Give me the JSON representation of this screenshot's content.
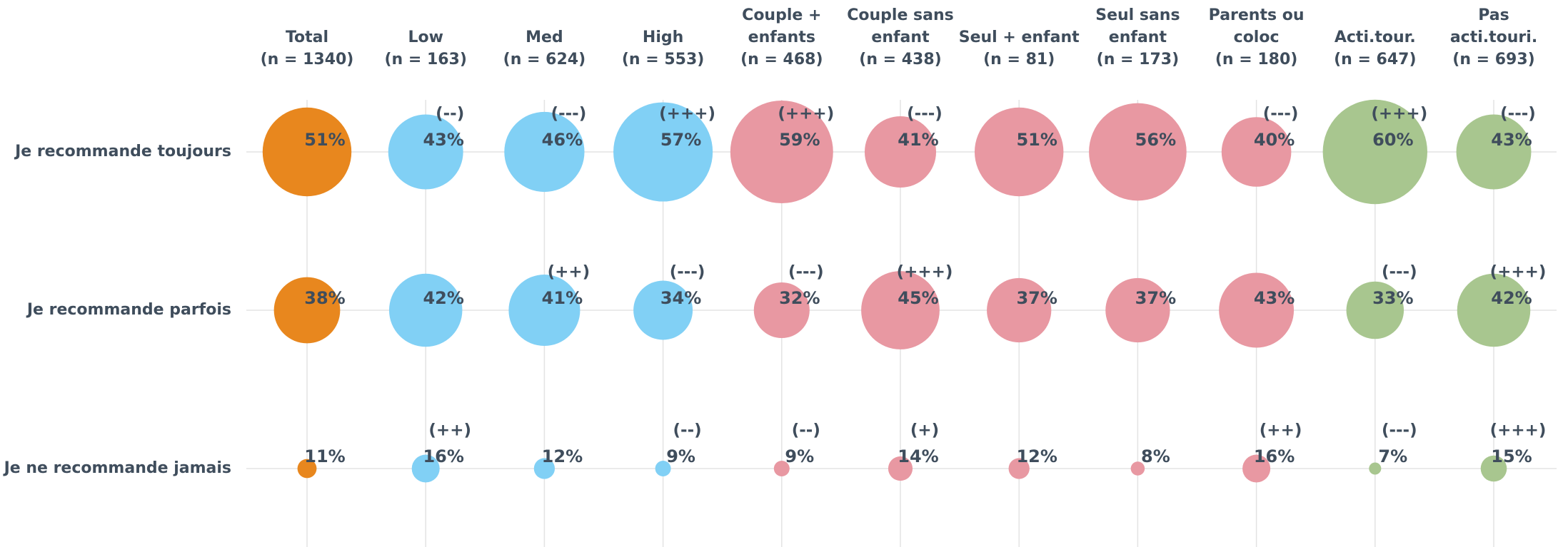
{
  "chart_data": {
    "type": "bubble-grid",
    "columns": [
      {
        "label": [
          "Total",
          "(n = 1340)"
        ],
        "color": "#e8871e"
      },
      {
        "label": [
          "Low",
          "(n = 163)"
        ],
        "color": "#81d0f5"
      },
      {
        "label": [
          "Med",
          "(n = 624)"
        ],
        "color": "#81d0f5"
      },
      {
        "label": [
          "High",
          "(n = 553)"
        ],
        "color": "#81d0f5"
      },
      {
        "label": [
          "Couple +",
          "enfants",
          "(n = 468)"
        ],
        "color": "#e898a2"
      },
      {
        "label": [
          "Couple sans",
          "enfant",
          "(n = 438)"
        ],
        "color": "#e898a2"
      },
      {
        "label": [
          "Seul + enfant",
          "(n = 81)"
        ],
        "color": "#e898a2"
      },
      {
        "label": [
          "Seul sans",
          "enfant",
          "(n = 173)"
        ],
        "color": "#e898a2"
      },
      {
        "label": [
          "Parents ou",
          "coloc",
          "(n = 180)"
        ],
        "color": "#e898a2"
      },
      {
        "label": [
          "Acti.tour.",
          "(n = 647)"
        ],
        "color": "#a8c68f"
      },
      {
        "label": [
          "Pas",
          "acti.touri.",
          "(n = 693)"
        ],
        "color": "#a8c68f"
      }
    ],
    "rows": [
      "Je recommande toujours",
      "Je recommande parfois",
      "Je ne recommande jamais"
    ],
    "values": [
      [
        51,
        43,
        46,
        57,
        59,
        41,
        51,
        56,
        40,
        60,
        43
      ],
      [
        38,
        42,
        41,
        34,
        32,
        45,
        37,
        37,
        43,
        33,
        42
      ],
      [
        11,
        16,
        12,
        9,
        9,
        14,
        12,
        8,
        16,
        7,
        15
      ]
    ],
    "value_labels": [
      [
        "51%",
        "43%",
        "46%",
        "57%",
        "59%",
        "41%",
        "51%",
        "56%",
        "40%",
        "60%",
        "43%"
      ],
      [
        "38%",
        "42%",
        "41%",
        "34%",
        "32%",
        "45%",
        "37%",
        "37%",
        "43%",
        "33%",
        "42%"
      ],
      [
        "11%",
        "16%",
        "12%",
        "9%",
        "9%",
        "14%",
        "12%",
        "8%",
        "16%",
        "7%",
        "15%"
      ]
    ],
    "annotations": [
      [
        null,
        "(--)",
        "(---)",
        "(+++)",
        "(+++)",
        "(---)",
        null,
        null,
        "(---)",
        "(+++)",
        "(---)"
      ],
      [
        null,
        null,
        "(++)",
        "(---)",
        "(---)",
        "(+++)",
        null,
        null,
        null,
        "(---)",
        "(+++)"
      ],
      [
        null,
        "(++)",
        null,
        "(--)",
        "(--)",
        "(+)",
        null,
        null,
        "(++)",
        "(---)",
        "(+++)"
      ]
    ]
  }
}
